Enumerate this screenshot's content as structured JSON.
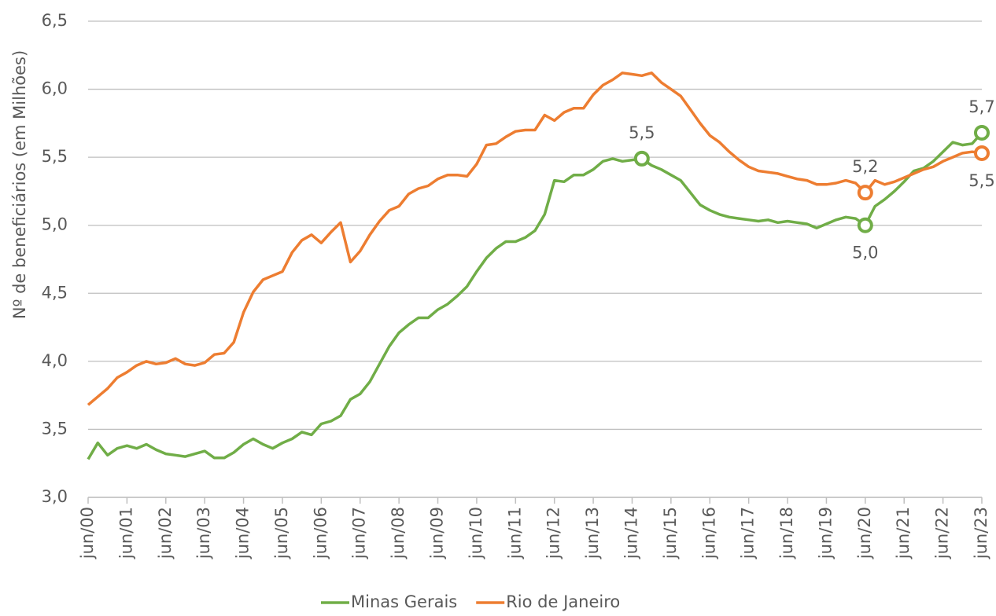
{
  "chart_data": {
    "type": "line",
    "y_axis_label": "Nº de beneficiários (em Milhões)",
    "categories": [
      "jun/00",
      null,
      null,
      null,
      "jun/01",
      null,
      null,
      null,
      "jun/02",
      null,
      null,
      null,
      "jun/03",
      null,
      null,
      null,
      "jun/04",
      null,
      null,
      null,
      "jun/05",
      null,
      null,
      null,
      "jun/06",
      null,
      null,
      null,
      "jun/07",
      null,
      null,
      null,
      "jun/08",
      null,
      null,
      null,
      "jun/09",
      null,
      null,
      null,
      "jun/10",
      null,
      null,
      null,
      "jun/11",
      null,
      null,
      null,
      "jun/12",
      null,
      null,
      null,
      "jun/13",
      null,
      null,
      null,
      "jun/14",
      null,
      null,
      null,
      "jun/15",
      null,
      null,
      null,
      "jun/16",
      null,
      null,
      null,
      "jun/17",
      null,
      null,
      null,
      "jun/18",
      null,
      null,
      null,
      "jun/19",
      null,
      null,
      null,
      "jun/20",
      null,
      null,
      null,
      "jun/21",
      null,
      null,
      null,
      "jun/22",
      null,
      null,
      null,
      "jun/23"
    ],
    "series": [
      {
        "name": "Minas Gerais",
        "color": "#70ad47",
        "values": [
          3.28,
          3.4,
          3.31,
          3.36,
          3.38,
          3.36,
          3.39,
          3.35,
          3.32,
          3.31,
          3.3,
          3.32,
          3.34,
          3.29,
          3.29,
          3.33,
          3.39,
          3.43,
          3.39,
          3.36,
          3.4,
          3.43,
          3.48,
          3.46,
          3.54,
          3.56,
          3.6,
          3.72,
          3.76,
          3.85,
          3.98,
          4.11,
          4.21,
          4.27,
          4.32,
          4.32,
          4.38,
          4.42,
          4.48,
          4.55,
          4.66,
          4.76,
          4.83,
          4.88,
          4.88,
          4.91,
          4.96,
          5.08,
          5.33,
          5.32,
          5.37,
          5.37,
          5.41,
          5.47,
          5.49,
          5.47,
          5.48,
          5.49,
          5.44,
          5.41,
          5.37,
          5.33,
          5.24,
          5.15,
          5.11,
          5.08,
          5.06,
          5.05,
          5.04,
          5.03,
          5.04,
          5.02,
          5.03,
          5.02,
          5.01,
          4.98,
          5.01,
          5.04,
          5.06,
          5.05,
          5.0,
          5.14,
          5.19,
          5.25,
          5.32,
          5.4,
          5.42,
          5.47,
          5.54,
          5.61,
          5.59,
          5.6,
          5.68
        ],
        "value_labels": [
          null,
          null,
          null,
          null,
          null,
          null,
          null,
          null,
          null,
          null,
          null,
          null,
          null,
          null,
          null,
          null,
          null,
          null,
          null,
          null,
          null,
          null,
          null,
          null,
          null,
          null,
          null,
          null,
          null,
          null,
          null,
          null,
          null,
          null,
          null,
          null,
          null,
          null,
          null,
          null,
          null,
          null,
          null,
          null,
          null,
          null,
          null,
          null,
          null,
          null,
          null,
          null,
          null,
          null,
          null,
          null,
          null,
          "5,5",
          null,
          null,
          null,
          null,
          null,
          null,
          null,
          null,
          null,
          null,
          null,
          null,
          null,
          null,
          null,
          null,
          null,
          null,
          null,
          null,
          null,
          null,
          "5,0",
          null,
          null,
          null,
          null,
          null,
          null,
          null,
          null,
          null,
          null,
          null,
          "5,7"
        ]
      },
      {
        "name": "Rio de Janeiro",
        "color": "#ed7d31",
        "values": [
          3.68,
          3.74,
          3.8,
          3.88,
          3.92,
          3.97,
          4.0,
          3.98,
          3.99,
          4.02,
          3.98,
          3.97,
          3.99,
          4.05,
          4.06,
          4.14,
          4.36,
          4.51,
          4.6,
          4.63,
          4.66,
          4.8,
          4.89,
          4.93,
          4.87,
          4.95,
          5.02,
          4.73,
          4.81,
          4.93,
          5.03,
          5.11,
          5.14,
          5.23,
          5.27,
          5.29,
          5.34,
          5.37,
          5.37,
          5.36,
          5.45,
          5.59,
          5.6,
          5.65,
          5.69,
          5.7,
          5.7,
          5.81,
          5.77,
          5.83,
          5.86,
          5.86,
          5.96,
          6.03,
          6.07,
          6.12,
          6.11,
          6.1,
          6.12,
          6.05,
          6.0,
          5.95,
          5.85,
          5.75,
          5.66,
          5.61,
          5.54,
          5.48,
          5.43,
          5.4,
          5.39,
          5.38,
          5.36,
          5.34,
          5.33,
          5.3,
          5.3,
          5.31,
          5.33,
          5.31,
          5.24,
          5.33,
          5.3,
          5.32,
          5.35,
          5.38,
          5.41,
          5.43,
          5.47,
          5.5,
          5.53,
          5.54,
          5.53
        ],
        "value_labels": [
          null,
          null,
          null,
          null,
          null,
          null,
          null,
          null,
          null,
          null,
          null,
          null,
          null,
          null,
          null,
          null,
          null,
          null,
          null,
          null,
          null,
          null,
          null,
          null,
          null,
          null,
          null,
          null,
          null,
          null,
          null,
          null,
          null,
          null,
          null,
          null,
          null,
          null,
          null,
          null,
          null,
          null,
          null,
          null,
          null,
          null,
          null,
          null,
          null,
          null,
          null,
          null,
          null,
          null,
          null,
          null,
          null,
          null,
          null,
          null,
          null,
          null,
          null,
          null,
          null,
          null,
          null,
          null,
          null,
          null,
          null,
          null,
          null,
          null,
          null,
          null,
          null,
          null,
          null,
          null,
          "5,2",
          null,
          null,
          null,
          null,
          null,
          null,
          null,
          null,
          null,
          null,
          null,
          "5,5"
        ]
      }
    ],
    "ylim": [
      3.0,
      6.5
    ],
    "yticks": [
      {
        "value": 3.0,
        "label": "3,0"
      },
      {
        "value": 3.5,
        "label": "3,5"
      },
      {
        "value": 4.0,
        "label": "4,0"
      },
      {
        "value": 4.5,
        "label": "4,5"
      },
      {
        "value": 5.0,
        "label": "5,0"
      },
      {
        "value": 5.5,
        "label": "5,5"
      },
      {
        "value": 6.0,
        "label": "6,0"
      },
      {
        "value": 6.5,
        "label": "6,5"
      }
    ],
    "grid": true,
    "legend": "bottom"
  }
}
